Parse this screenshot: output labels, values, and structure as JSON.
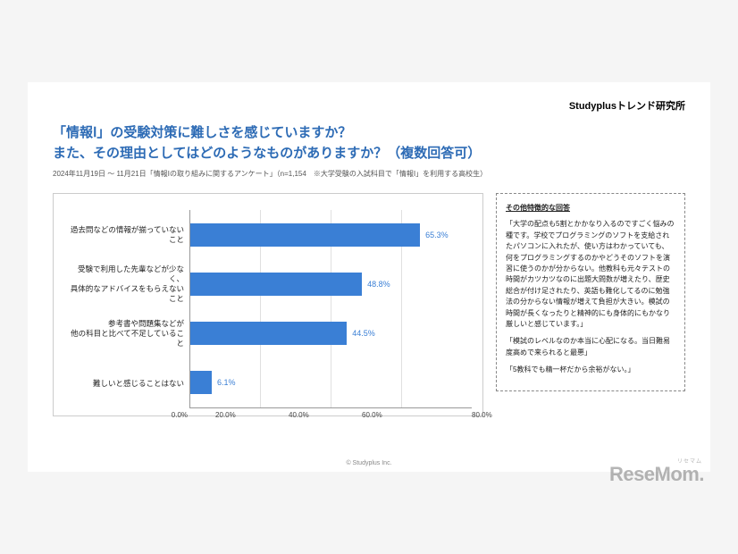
{
  "brand": "Studyplusトレンド研究所",
  "title_line1": "「情報Ⅰ」の受験対策に難しさを感じていますか？",
  "title_line2": "また、その理由としてはどのようなものがありますか？（複数回答可）",
  "title_color": "#2d6bb5",
  "subtitle": "2024年11月19日 ～ 11月21日「情報Ⅰの取り組みに関するアンケート」（n=1,154　※大学受験の入試科目で「情報Ⅰ」を利用する高校生）",
  "chart": {
    "type": "bar-horizontal",
    "xlim": [
      0,
      80
    ],
    "xtick_step": 20,
    "xtick_labels": [
      "0.0%",
      "20.0%",
      "40.0%",
      "60.0%",
      "80.0%"
    ],
    "bar_color": "#3a7fd5",
    "grid_color": "#e0e0e0",
    "axis_color": "#999999",
    "background_color": "#ffffff",
    "label_fontsize": 8.5,
    "value_fontsize": 9,
    "items": [
      {
        "label": "過去問などの情報が揃っていないこと",
        "value": 65.3,
        "value_label": "65.3%"
      },
      {
        "label": "受験で利用した先輩などが少なく、\n具体的なアドバイスをもらえないこと",
        "value": 48.8,
        "value_label": "48.8%"
      },
      {
        "label": "参考書や問題集などが\n他の科目と比べて不足していること",
        "value": 44.5,
        "value_label": "44.5%"
      },
      {
        "label": "難しいと感じることはない",
        "value": 6.1,
        "value_label": "6.1%"
      }
    ]
  },
  "sidebox": {
    "title": "その他特徴的な回答",
    "paragraphs": [
      "「大学の配点も5割とかかなり入るのですごく悩みの種です。学校でプログラミングのソフトを支給されたパソコンに入れたが、使い方はわかっていても、何をプログラミングするのかやどうそのソフトを演習に使うのかが分からない。他教科も元々テストの時間がカツカツなのに出題大問数が増えたり、歴史総合が付け足されたり、英語も難化してるのに勉強法の分からない情報が増えて負担が大きい。模試の時間が長くなったりと精神的にも身体的にもかなり厳しいと感じています。」",
      "「模試のレベルなのか本当に心配になる。当日難易度高めで来られると最悪」",
      "「5教科でも精一杯だから余裕がない。」"
    ]
  },
  "footer": "© Studyplus Inc.",
  "watermark": {
    "text": "ReseMom",
    "rubi": "リセマム"
  }
}
